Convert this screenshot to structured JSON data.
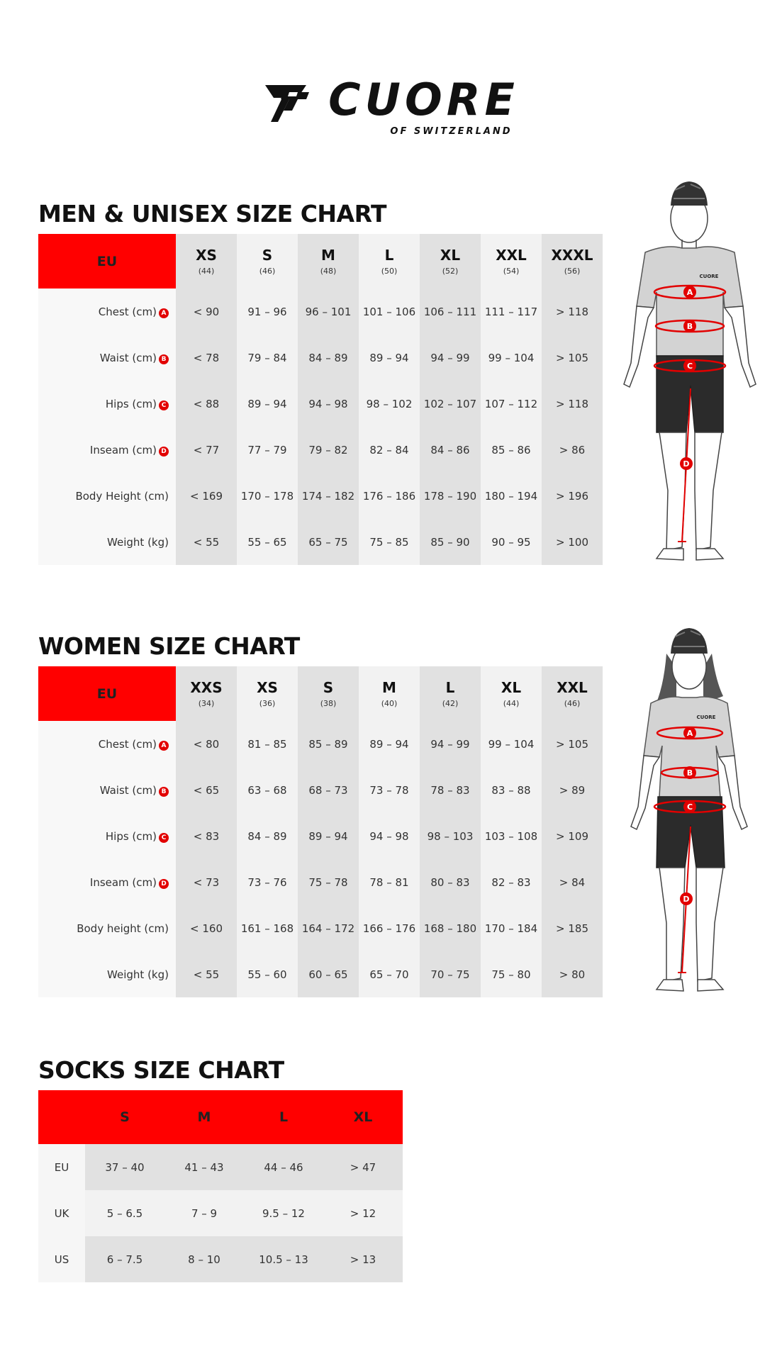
{
  "brand": {
    "name": "CUORE",
    "tagline": "OF SWITZERLAND"
  },
  "men": {
    "title": "MEN & UNISEX SIZE CHART",
    "corner_label": "EU",
    "sizes": [
      {
        "size": "XS",
        "eu": "(44)"
      },
      {
        "size": "S",
        "eu": "(46)"
      },
      {
        "size": "M",
        "eu": "(48)"
      },
      {
        "size": "L",
        "eu": "(50)"
      },
      {
        "size": "XL",
        "eu": "(52)"
      },
      {
        "size": "XXL",
        "eu": "(54)"
      },
      {
        "size": "XXXL",
        "eu": "(56)"
      }
    ],
    "rows": [
      {
        "label": "Chest (cm)",
        "marker": "A",
        "values": [
          "< 90",
          "91 – 96",
          "96 – 101",
          "101 – 106",
          "106 – 111",
          "111 – 117",
          "> 118"
        ]
      },
      {
        "label": "Waist (cm)",
        "marker": "B",
        "values": [
          "< 78",
          "79 – 84",
          "84 – 89",
          "89 – 94",
          "94 – 99",
          "99 – 104",
          "> 105"
        ]
      },
      {
        "label": "Hips (cm)",
        "marker": "C",
        "values": [
          "< 88",
          "89 – 94",
          "94 – 98",
          "98 – 102",
          "102 – 107",
          "107 – 112",
          "> 118"
        ]
      },
      {
        "label": "Inseam (cm)",
        "marker": "D",
        "values": [
          "< 77",
          "77 – 79",
          "79 – 82",
          "82 – 84",
          "84 – 86",
          "85 – 86",
          "> 86"
        ]
      },
      {
        "label": "Body Height (cm)",
        "marker": "",
        "values": [
          "< 169",
          "170 – 178",
          "174 – 182",
          "176 – 186",
          "178 – 190",
          "180 – 194",
          "> 196"
        ]
      },
      {
        "label": "Weight (kg)",
        "marker": "",
        "values": [
          "< 55",
          "55 – 65",
          "65 – 75",
          "75 – 85",
          "85 – 90",
          "90 – 95",
          "> 100"
        ]
      }
    ]
  },
  "women": {
    "title": "WOMEN SIZE CHART",
    "corner_label": "EU",
    "sizes": [
      {
        "size": "XXS",
        "eu": "(34)"
      },
      {
        "size": "XS",
        "eu": "(36)"
      },
      {
        "size": "S",
        "eu": "(38)"
      },
      {
        "size": "M",
        "eu": "(40)"
      },
      {
        "size": "L",
        "eu": "(42)"
      },
      {
        "size": "XL",
        "eu": "(44)"
      },
      {
        "size": "XXL",
        "eu": "(46)"
      }
    ],
    "rows": [
      {
        "label": "Chest (cm)",
        "marker": "A",
        "values": [
          "< 80",
          "81 – 85",
          "85 – 89",
          "89 – 94",
          "94 – 99",
          "99 – 104",
          "> 105"
        ]
      },
      {
        "label": "Waist (cm)",
        "marker": "B",
        "values": [
          "< 65",
          "63 – 68",
          "68 – 73",
          "73 – 78",
          "78 – 83",
          "83 – 88",
          "> 89"
        ]
      },
      {
        "label": "Hips (cm)",
        "marker": "C",
        "values": [
          "< 83",
          "84 – 89",
          "89 – 94",
          "94 – 98",
          "98 – 103",
          "103 – 108",
          "> 109"
        ]
      },
      {
        "label": "Inseam (cm)",
        "marker": "D",
        "values": [
          "< 73",
          "73 – 76",
          "75 – 78",
          "78 – 81",
          "80 – 83",
          "82 – 83",
          "> 84"
        ]
      },
      {
        "label": "Body height (cm)",
        "marker": "",
        "values": [
          "< 160",
          "161 – 168",
          "164 – 172",
          "166 – 176",
          "168 – 180",
          "170 – 184",
          "> 185"
        ]
      },
      {
        "label": "Weight (kg)",
        "marker": "",
        "values": [
          "< 55",
          "55 – 60",
          "60 – 65",
          "65 – 70",
          "70 – 75",
          "75 – 80",
          "> 80"
        ]
      }
    ]
  },
  "socks": {
    "title": "SOCKS SIZE CHART",
    "sizes": [
      "S",
      "M",
      "L",
      "XL"
    ],
    "rows": [
      {
        "label": "EU",
        "values": [
          "37 – 40",
          "41 – 43",
          "44 – 46",
          "> 47"
        ]
      },
      {
        "label": "UK",
        "values": [
          "5 – 6.5",
          "7 – 9",
          "9.5 – 12",
          "> 12"
        ]
      },
      {
        "label": "US",
        "values": [
          "6 – 7.5",
          "8 – 10",
          "10.5 – 13",
          "> 13"
        ]
      }
    ]
  },
  "figures": {
    "markers": [
      "A",
      "B",
      "C",
      "D"
    ],
    "jersey_logo": "CUORE"
  },
  "colors": {
    "accent_red": "#ff0000",
    "marker_red": "#e20000",
    "shade_dark": "#e1e1e1",
    "shade_light": "#f2f2f2"
  }
}
